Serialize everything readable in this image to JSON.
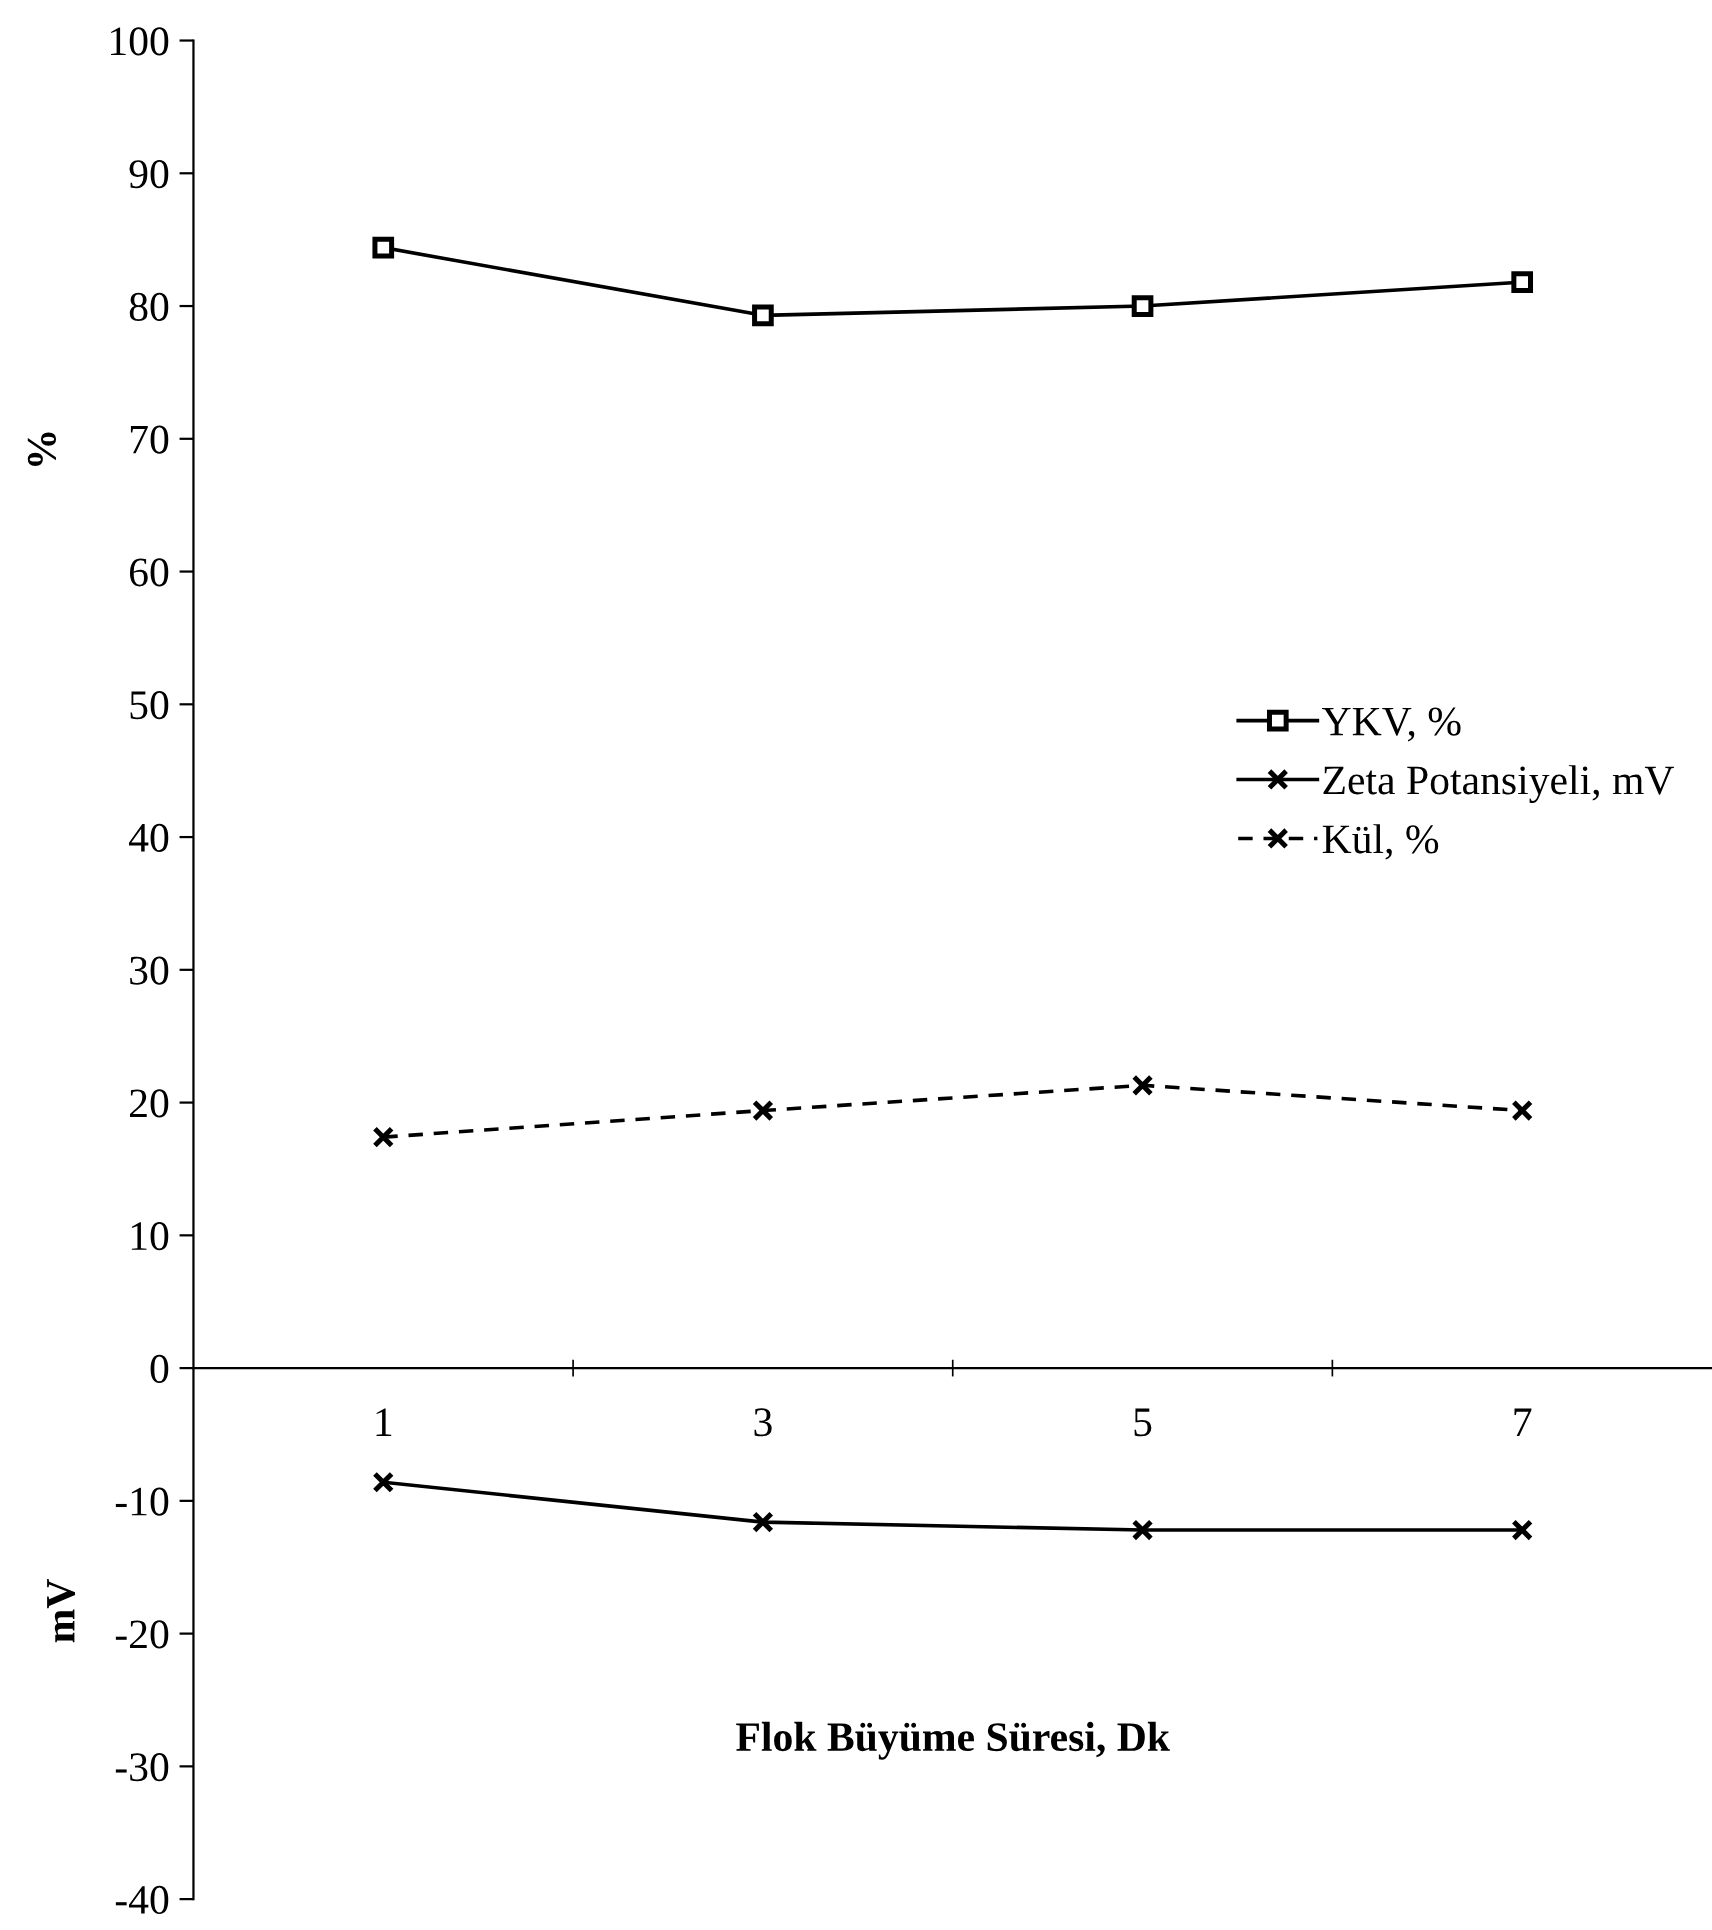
{
  "chart_data": {
    "type": "line",
    "xlabel": "Flok Büyüme Süresi, Dk",
    "ylabel": "%",
    "annotations": [
      "mV"
    ],
    "categories": [
      "1",
      "3",
      "5",
      "7"
    ],
    "series": [
      {
        "name": "YKV, %",
        "color": "#000000",
        "values": [
          84.4,
          79.3,
          80.0,
          81.8
        ],
        "marker": "square",
        "line_style": "solid"
      },
      {
        "name": "Zeta Potansiyeli, mV",
        "color": "#000000",
        "values": [
          -8.6,
          -11.6,
          -12.2,
          -12.2
        ],
        "marker": "cross",
        "line_style": "solid"
      },
      {
        "name": "Kül, %",
        "color": "#000000",
        "values": [
          17.4,
          19.4,
          21.3,
          19.4
        ],
        "marker": "cross",
        "line_style": "dashed"
      }
    ],
    "ylim": [
      -40,
      100
    ],
    "yticks": [
      -40,
      -30,
      -20,
      -10,
      0,
      10,
      20,
      30,
      40,
      50,
      60,
      70,
      80,
      90,
      100
    ],
    "grid": false,
    "legend": "right"
  }
}
